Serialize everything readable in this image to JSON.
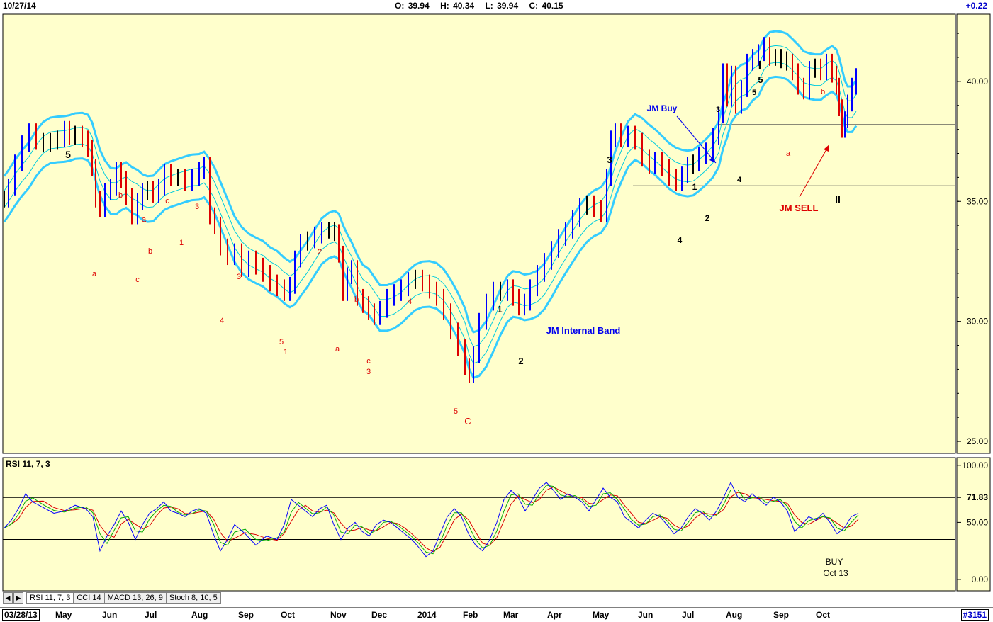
{
  "header": {
    "date": "10/27/14",
    "open_label": "O:",
    "open": "39.94",
    "high_label": "H:",
    "high": "40.34",
    "low_label": "L:",
    "low": "39.94",
    "close_label": "C:",
    "close": "40.15",
    "change": "+0.22"
  },
  "colors": {
    "panel_bg": "#ffffcc",
    "band_outer": "#33ccff",
    "band_inner": "#00ccdd",
    "bar_up": "#0000ff",
    "bar_down": "#dd0000",
    "bar_neutral": "#000000",
    "rsi_line": "#0000ff",
    "signal_green": "#00aa00",
    "signal_red": "#dd0000"
  },
  "chart_data": [
    {
      "type": "line",
      "ylim": [
        24.5,
        42.8
      ],
      "y_ticks": [
        "40.00",
        "35.00",
        "30.00",
        "25.00"
      ],
      "y_tick_values": [
        40,
        35,
        30,
        25
      ],
      "x_months": [
        "May",
        "Jun",
        "Jul",
        "Aug",
        "Sep",
        "Oct",
        "Nov",
        "Dec",
        "2014",
        "Feb",
        "Mar",
        "Apr",
        "May",
        "Jun",
        "Jul",
        "Aug",
        "Sep",
        "Oct"
      ],
      "start_date": "03/28/13",
      "series": [
        {
          "name": "",
          "x": [
            0,
            6,
            15,
            25,
            35,
            45,
            55,
            65,
            75,
            85,
            92,
            100,
            110,
            118,
            124,
            129,
            135,
            142,
            150,
            158,
            165,
            172,
            180,
            188,
            195,
            202,
            210,
            218,
            226,
            235,
            245,
            255,
            265,
            275,
            282,
            290,
            297,
            305,
            315,
            325,
            335,
            345,
            355,
            365,
            375,
            385,
            395,
            403,
            410,
            418,
            428,
            438,
            448,
            458,
            466,
            472,
            478,
            484,
            490,
            498,
            506,
            514,
            522,
            530,
            540,
            550,
            560,
            570,
            580,
            590,
            600,
            610,
            620,
            630,
            640,
            650,
            656,
            662,
            670,
            680,
            690,
            700,
            710,
            718,
            726,
            734,
            742,
            752,
            762,
            772,
            782,
            792,
            802,
            812,
            822,
            832,
            842,
            850,
            856,
            862,
            870,
            880,
            890,
            900,
            910,
            918,
            928,
            938,
            948,
            956,
            964,
            972,
            980,
            990,
            1000,
            1008,
            1014,
            1020,
            1026,
            1032,
            1040,
            1048,
            1056,
            1064,
            1072,
            1080,
            1088,
            1096,
            1104,
            1112,
            1120,
            1128,
            1136,
            1144,
            1152,
            1160,
            1168,
            1174,
            1178,
            1182,
            1186,
            1190,
            1196,
            1202
          ],
          "values": [
            35.1,
            35.6,
            36.6,
            37.4,
            37.9,
            37.5,
            37.4,
            37.5,
            37.6,
            38.0,
            37.7,
            37.8,
            37.6,
            37.2,
            36.4,
            35.1,
            34.7,
            35.4,
            35.6,
            36.3,
            35.9,
            35.2,
            34.4,
            35.0,
            35.4,
            35.5,
            35.3,
            35.6,
            36.2,
            36.0,
            36.0,
            35.8,
            36.0,
            36.3,
            36.5,
            34.4,
            34.0,
            33.1,
            32.7,
            32.9,
            32.2,
            32.6,
            32.3,
            32.0,
            31.6,
            31.4,
            31.2,
            31.5,
            32.6,
            33.3,
            33.4,
            33.6,
            33.8,
            33.8,
            33.7,
            32.8,
            31.2,
            31.9,
            32.2,
            31.0,
            30.7,
            30.4,
            30.2,
            30.5,
            31.0,
            31.2,
            31.4,
            31.7,
            31.8,
            31.6,
            31.3,
            31.0,
            30.4,
            29.6,
            28.9,
            28.1,
            27.8,
            28.6,
            30.0,
            30.8,
            31.3,
            31.2,
            31.4,
            31.0,
            30.6,
            30.8,
            31.4,
            32.0,
            32.5,
            33.0,
            33.5,
            33.8,
            34.3,
            34.8,
            34.9,
            34.7,
            34.5,
            36.0,
            37.6,
            37.9,
            37.6,
            37.8,
            37.5,
            36.8,
            36.5,
            36.7,
            36.4,
            36.0,
            35.8,
            36.1,
            36.5,
            36.6,
            36.9,
            37.1,
            37.7,
            38.6,
            40.4,
            39.3,
            40.3,
            39.0,
            39.7,
            40.8,
            41.0,
            41.2,
            41.5,
            41.0,
            41.0,
            40.9,
            40.8,
            40.4,
            39.8,
            39.6,
            40.5,
            40.6,
            40.4,
            40.8,
            40.3,
            39.8,
            38.9,
            38.0,
            38.4,
            39.1,
            39.8,
            40.2
          ]
        }
      ],
      "annotations": [
        {
          "text": "5",
          "color": "black"
        },
        {
          "text": "a",
          "color": "red"
        },
        {
          "text": "b",
          "color": "red"
        },
        {
          "text": "c",
          "color": "red"
        },
        {
          "text": "a",
          "color": "red"
        },
        {
          "text": "b",
          "color": "red"
        },
        {
          "text": "c",
          "color": "red"
        },
        {
          "text": "1",
          "color": "red"
        },
        {
          "text": "3",
          "color": "red"
        },
        {
          "text": "4",
          "color": "red"
        },
        {
          "text": "3",
          "color": "red"
        },
        {
          "text": "5",
          "color": "red"
        },
        {
          "text": "1",
          "color": "red"
        },
        {
          "text": "2",
          "color": "red"
        },
        {
          "text": "a",
          "color": "red"
        },
        {
          "text": "b",
          "color": "red"
        },
        {
          "text": "c",
          "color": "red"
        },
        {
          "text": "3",
          "color": "red"
        },
        {
          "text": "4",
          "color": "red"
        },
        {
          "text": "5",
          "color": "red"
        },
        {
          "text": "C",
          "color": "red"
        },
        {
          "text": "1",
          "color": "black"
        },
        {
          "text": "2",
          "color": "black"
        },
        {
          "text": "3",
          "color": "black"
        },
        {
          "text": "JM Internal Band",
          "color": "blue"
        },
        {
          "text": "JM Buy",
          "color": "blue"
        },
        {
          "text": "1",
          "color": "black"
        },
        {
          "text": "2",
          "color": "black"
        },
        {
          "text": "4",
          "color": "black"
        },
        {
          "text": "3",
          "color": "black"
        },
        {
          "text": "4",
          "color": "black"
        },
        {
          "text": "5",
          "color": "black"
        },
        {
          "text": "I",
          "color": "black"
        },
        {
          "text": "5",
          "color": "black"
        },
        {
          "text": "a",
          "color": "red"
        },
        {
          "text": "b",
          "color": "red"
        },
        {
          "text": "JM SELL",
          "color": "red"
        },
        {
          "text": "II",
          "color": "black"
        }
      ]
    },
    {
      "type": "line",
      "title": "RSI 11, 7, 3",
      "ylim": [
        -5,
        103
      ],
      "y_ticks": [
        "100.00",
        "71.83",
        "50.00",
        "0.00"
      ],
      "y_tick_values": [
        100,
        71.83,
        50,
        0
      ],
      "reference_lines": [
        71.83,
        35
      ],
      "series": [
        {
          "name": "",
          "x": [
            0,
            10,
            20,
            30,
            40,
            55,
            70,
            85,
            100,
            115,
            125,
            135,
            145,
            155,
            165,
            175,
            185,
            195,
            205,
            215,
            225,
            235,
            245,
            255,
            265,
            275,
            285,
            295,
            305,
            315,
            325,
            340,
            355,
            370,
            385,
            395,
            405,
            415,
            425,
            435,
            445,
            455,
            465,
            475,
            485,
            495,
            505,
            515,
            525,
            535,
            545,
            555,
            565,
            575,
            585,
            595,
            605,
            615,
            625,
            635,
            645,
            655,
            665,
            675,
            685,
            695,
            705,
            715,
            725,
            735,
            745,
            755,
            765,
            775,
            785,
            795,
            805,
            815,
            825,
            835,
            845,
            855,
            865,
            875,
            885,
            895,
            905,
            915,
            925,
            935,
            945,
            955,
            965,
            975,
            985,
            995,
            1005,
            1015,
            1025,
            1035,
            1045,
            1055,
            1065,
            1075,
            1085,
            1095,
            1105,
            1115,
            1125,
            1135,
            1145,
            1155,
            1165,
            1175,
            1185,
            1195,
            1205
          ],
          "values": [
            45,
            52,
            62,
            75,
            68,
            63,
            58,
            60,
            65,
            62,
            55,
            25,
            38,
            48,
            60,
            50,
            35,
            48,
            58,
            62,
            68,
            60,
            58,
            55,
            60,
            62,
            58,
            40,
            25,
            35,
            48,
            40,
            30,
            38,
            35,
            48,
            70,
            65,
            60,
            55,
            62,
            65,
            48,
            35,
            45,
            50,
            42,
            38,
            48,
            52,
            50,
            45,
            40,
            35,
            28,
            20,
            25,
            40,
            55,
            62,
            55,
            40,
            30,
            25,
            35,
            50,
            70,
            78,
            72,
            60,
            70,
            80,
            85,
            78,
            70,
            75,
            72,
            68,
            60,
            70,
            80,
            72,
            68,
            55,
            50,
            45,
            52,
            58,
            55,
            48,
            40,
            45,
            55,
            62,
            58,
            52,
            60,
            72,
            85,
            72,
            68,
            75,
            70,
            65,
            72,
            68,
            60,
            42,
            48,
            55,
            52,
            58,
            50,
            40,
            45,
            55,
            58
          ]
        }
      ],
      "annotations": [
        {
          "text": "BUY"
        },
        {
          "text": "Oct 13"
        }
      ]
    }
  ],
  "indicator_tabs": [
    "RSI 11, 7, 3",
    "CCI 14",
    "MACD 13, 26, 9",
    "Stoch 8, 10, 5"
  ],
  "bottom": {
    "start_date": "03/28/13",
    "months": [
      "May",
      "Jun",
      "Jul",
      "Aug",
      "Sep",
      "Oct",
      "Nov",
      "Dec",
      "2014",
      "Feb",
      "Mar",
      "Apr",
      "May",
      "Jun",
      "Jul",
      "Aug",
      "Sep",
      "Oct"
    ],
    "chart_code": "#3151"
  }
}
